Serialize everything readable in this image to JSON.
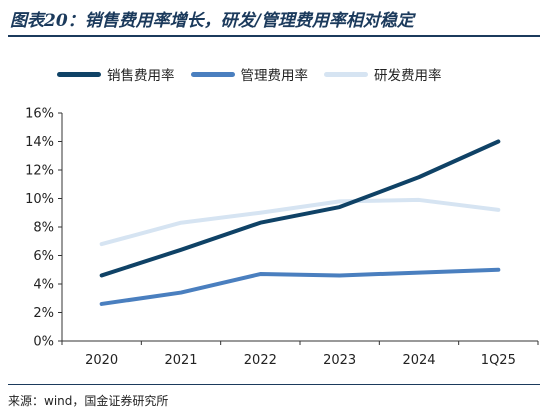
{
  "title": "图表20：销售费用率增长，研发/管理费用率相对稳定",
  "source": "来源：wind，国金证券研究所",
  "chart_data": {
    "type": "line",
    "categories": [
      "2020",
      "2021",
      "2022",
      "2023",
      "2024",
      "1Q25"
    ],
    "yticks": [
      "0%",
      "2%",
      "4%",
      "6%",
      "8%",
      "10%",
      "12%",
      "14%",
      "16%"
    ],
    "ylim": [
      0,
      16
    ],
    "grid": false,
    "legend_position": "top",
    "series": [
      {
        "name": "销售费用率",
        "color": "#0f4266",
        "values": [
          4.6,
          6.4,
          8.3,
          9.4,
          11.5,
          14.0
        ]
      },
      {
        "name": "管理费用率",
        "color": "#4a7fbf",
        "values": [
          2.6,
          3.4,
          4.7,
          4.6,
          4.8,
          5.0
        ]
      },
      {
        "name": "研发费用率",
        "color": "#d6e4f2",
        "values": [
          6.8,
          8.3,
          9.0,
          9.8,
          9.9,
          9.2
        ]
      }
    ]
  }
}
